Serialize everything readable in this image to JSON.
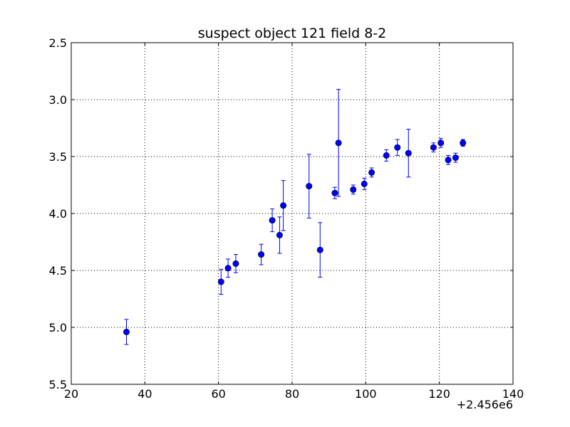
{
  "chart_data": {
    "type": "scatter",
    "title": "suspect object 121 field 8-2",
    "xlabel": "",
    "ylabel": "",
    "x_offset_label": "+2.456e6",
    "xlim": [
      20,
      140
    ],
    "ylim": [
      2.5,
      5.5
    ],
    "y_inverted": true,
    "grid": true,
    "x_ticks": [
      20,
      40,
      60,
      80,
      100,
      120,
      140
    ],
    "x_tick_labels": [
      "20",
      "40",
      "60",
      "80",
      "100",
      "120",
      "140"
    ],
    "y_ticks": [
      2.5,
      3.0,
      3.5,
      4.0,
      4.5,
      5.0,
      5.5
    ],
    "y_tick_labels": [
      "2.5",
      "3.0",
      "3.5",
      "4.0",
      "4.5",
      "5.0",
      "5.5"
    ],
    "marker_color": "#0000ff",
    "errorbar_color": "#0000ff",
    "series": [
      {
        "points": [
          {
            "x": 35.0,
            "y": 5.04,
            "err": 0.11
          },
          {
            "x": 60.7,
            "y": 4.6,
            "err": 0.11
          },
          {
            "x": 62.6,
            "y": 4.48,
            "err": 0.08
          },
          {
            "x": 64.7,
            "y": 4.44,
            "err": 0.08
          },
          {
            "x": 71.6,
            "y": 4.36,
            "err": 0.09
          },
          {
            "x": 74.6,
            "y": 4.06,
            "err": 0.1
          },
          {
            "x": 76.6,
            "y": 4.19,
            "err": 0.16
          },
          {
            "x": 77.6,
            "y": 3.93,
            "err": 0.22
          },
          {
            "x": 84.6,
            "y": 3.76,
            "err": 0.28
          },
          {
            "x": 87.6,
            "y": 4.32,
            "err": 0.24
          },
          {
            "x": 91.6,
            "y": 3.82,
            "err": 0.05
          },
          {
            "x": 92.6,
            "y": 3.38,
            "err": 0.47
          },
          {
            "x": 96.6,
            "y": 3.79,
            "err": 0.04
          },
          {
            "x": 99.6,
            "y": 3.74,
            "err": 0.05
          },
          {
            "x": 101.6,
            "y": 3.64,
            "err": 0.04
          },
          {
            "x": 105.6,
            "y": 3.49,
            "err": 0.05
          },
          {
            "x": 108.6,
            "y": 3.42,
            "err": 0.07
          },
          {
            "x": 111.6,
            "y": 3.47,
            "err": 0.21
          },
          {
            "x": 118.4,
            "y": 3.42,
            "err": 0.04
          },
          {
            "x": 120.4,
            "y": 3.38,
            "err": 0.04
          },
          {
            "x": 122.4,
            "y": 3.53,
            "err": 0.04
          },
          {
            "x": 124.4,
            "y": 3.51,
            "err": 0.04
          },
          {
            "x": 126.4,
            "y": 3.38,
            "err": 0.03
          }
        ]
      }
    ]
  }
}
